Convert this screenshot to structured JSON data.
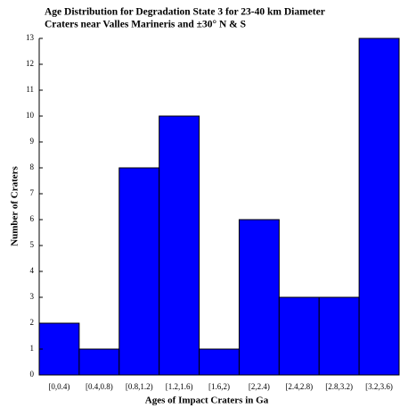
{
  "chart_data": {
    "type": "bar",
    "title": [
      "Age Distribution for Degradation State 3 for 23-40 km Diameter",
      "Craters near Valles Marineris and ±30° N & S"
    ],
    "x_label": "Ages of Impact Craters in Ga",
    "y_label": "Number of Craters",
    "categories": [
      "[0,0.4)",
      "[0.4,0.8)",
      "[0.8,1.2)",
      "[1.2,1.6)",
      "[1.6,2)",
      "[2,2.4)",
      "[2.4,2.8)",
      "[2.8,3.2)",
      "[3.2,3.6)"
    ],
    "values": [
      2,
      1,
      8,
      10,
      1,
      6,
      3,
      3,
      13
    ],
    "color": "#0000ff",
    "ylim": [
      0,
      13
    ],
    "yticks": [
      0,
      1,
      2,
      3,
      4,
      5,
      6,
      7,
      8,
      9,
      10,
      11,
      12,
      13
    ],
    "grid": false
  }
}
